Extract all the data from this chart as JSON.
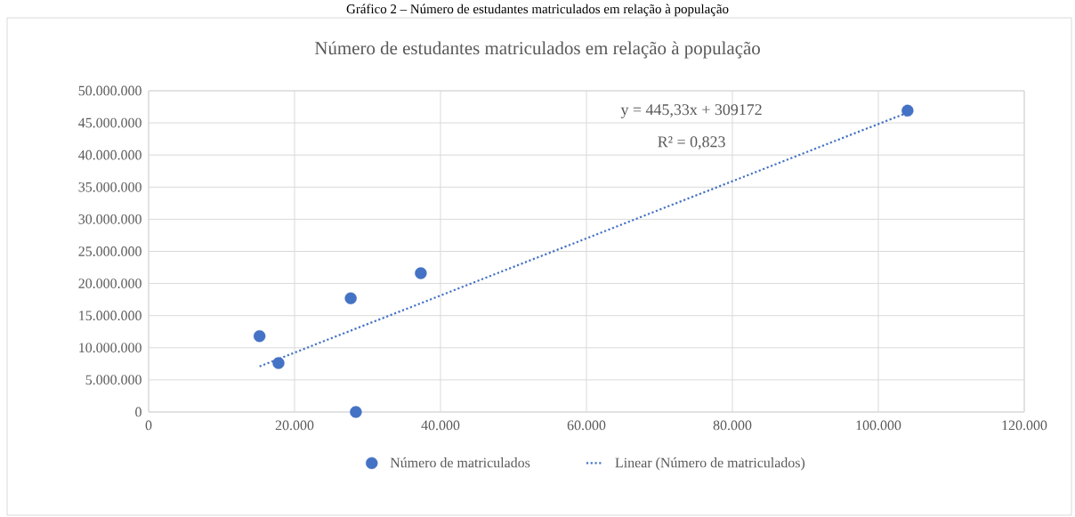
{
  "chart_data": {
    "type": "scatter",
    "title": "Número de estudantes matriculados em relação à população",
    "annotations": [
      "Gráfico 2 – Número de estudantes matriculados em relação à população",
      "y = 445,33x + 309172",
      "R² = 0,823"
    ],
    "series": [
      {
        "name": "Número de matriculados",
        "color": "#4472c4",
        "marker": "circle",
        "x": [
          15200,
          17800,
          27700,
          28400,
          37300,
          104000
        ],
        "values": [
          11800000,
          7600000,
          17700000,
          0,
          21600000,
          46900000
        ]
      },
      {
        "name": "Linear (Número de matriculados)",
        "type": "line",
        "color": "#4472c4",
        "marker": "none",
        "line_style": "dotted",
        "x": [
          15200,
          104000
        ],
        "values": [
          7100000,
          46600000
        ]
      }
    ],
    "xlim": [
      0,
      120000
    ],
    "ylim": [
      0,
      50000000
    ],
    "xticks": [
      0,
      {
        "value": 20000,
        "label": "20.000"
      },
      {
        "value": 40000,
        "label": "40.000"
      },
      {
        "value": 60000,
        "label": "60.000"
      },
      {
        "value": 80000,
        "label": "80.000"
      },
      {
        "value": 100000,
        "label": "100.000"
      },
      {
        "value": 120000,
        "label": "120.000"
      }
    ],
    "yticks": [
      0,
      {
        "value": 5000000,
        "label": "5.000.000"
      },
      {
        "value": 10000000,
        "label": "10.000.000"
      },
      {
        "value": 15000000,
        "label": "15.000.000"
      },
      {
        "value": 20000000,
        "label": "20.000.000"
      },
      {
        "value": 25000000,
        "label": "25.000.000"
      },
      {
        "value": 30000000,
        "label": "30.000.000"
      },
      {
        "value": 35000000,
        "label": "35.000.000"
      },
      {
        "value": 40000000,
        "label": "40.000.000"
      },
      {
        "value": 45000000,
        "label": "45.000.000"
      },
      {
        "value": 50000000,
        "label": "50.000.000"
      }
    ],
    "grid": true,
    "legend": "bottom"
  }
}
